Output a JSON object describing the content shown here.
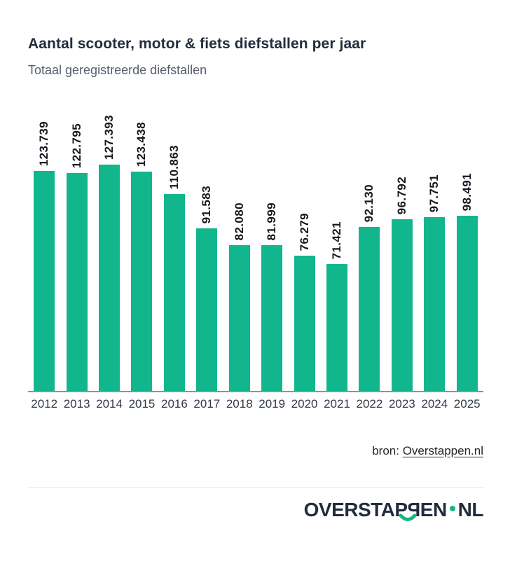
{
  "header": {
    "title": "Aantal scooter, motor & fiets diefstallen per jaar",
    "subtitle": "Totaal geregistreerde diefstallen"
  },
  "chart_data": {
    "type": "bar",
    "title": "Aantal scooter, motor & fiets diefstallen per jaar",
    "subtitle": "Totaal geregistreerde diefstallen",
    "categories": [
      "2012",
      "2013",
      "2014",
      "2015",
      "2016",
      "2017",
      "2018",
      "2019",
      "2020",
      "2021",
      "2022",
      "2023",
      "2024",
      "2025"
    ],
    "values": [
      123739,
      122795,
      127393,
      123438,
      110863,
      91583,
      82080,
      81999,
      76279,
      71421,
      92130,
      96792,
      97751,
      98491
    ],
    "value_labels": [
      "123.739",
      "122.795",
      "127.393",
      "123.438",
      "110.863",
      "91.583",
      "82.080",
      "81.999",
      "76.279",
      "71.421",
      "92.130",
      "96.792",
      "97.751",
      "98.491"
    ],
    "xlabel": "",
    "ylabel": "",
    "ylim": [
      0,
      127393
    ],
    "bar_color": "#12b68d",
    "value_label_rotation": -90,
    "grid": false,
    "legend": false,
    "axis_line_color": "#8e939b"
  },
  "source": {
    "prefix": "bron: ",
    "link_text": "Overstappen.nl"
  },
  "logo": {
    "part1": "OVERSTA",
    "p_normal": "P",
    "p_mirrored": "P",
    "part2": "EN",
    "part3": "NL",
    "navy_color": "#232c3d",
    "green_color": "#10b981"
  }
}
